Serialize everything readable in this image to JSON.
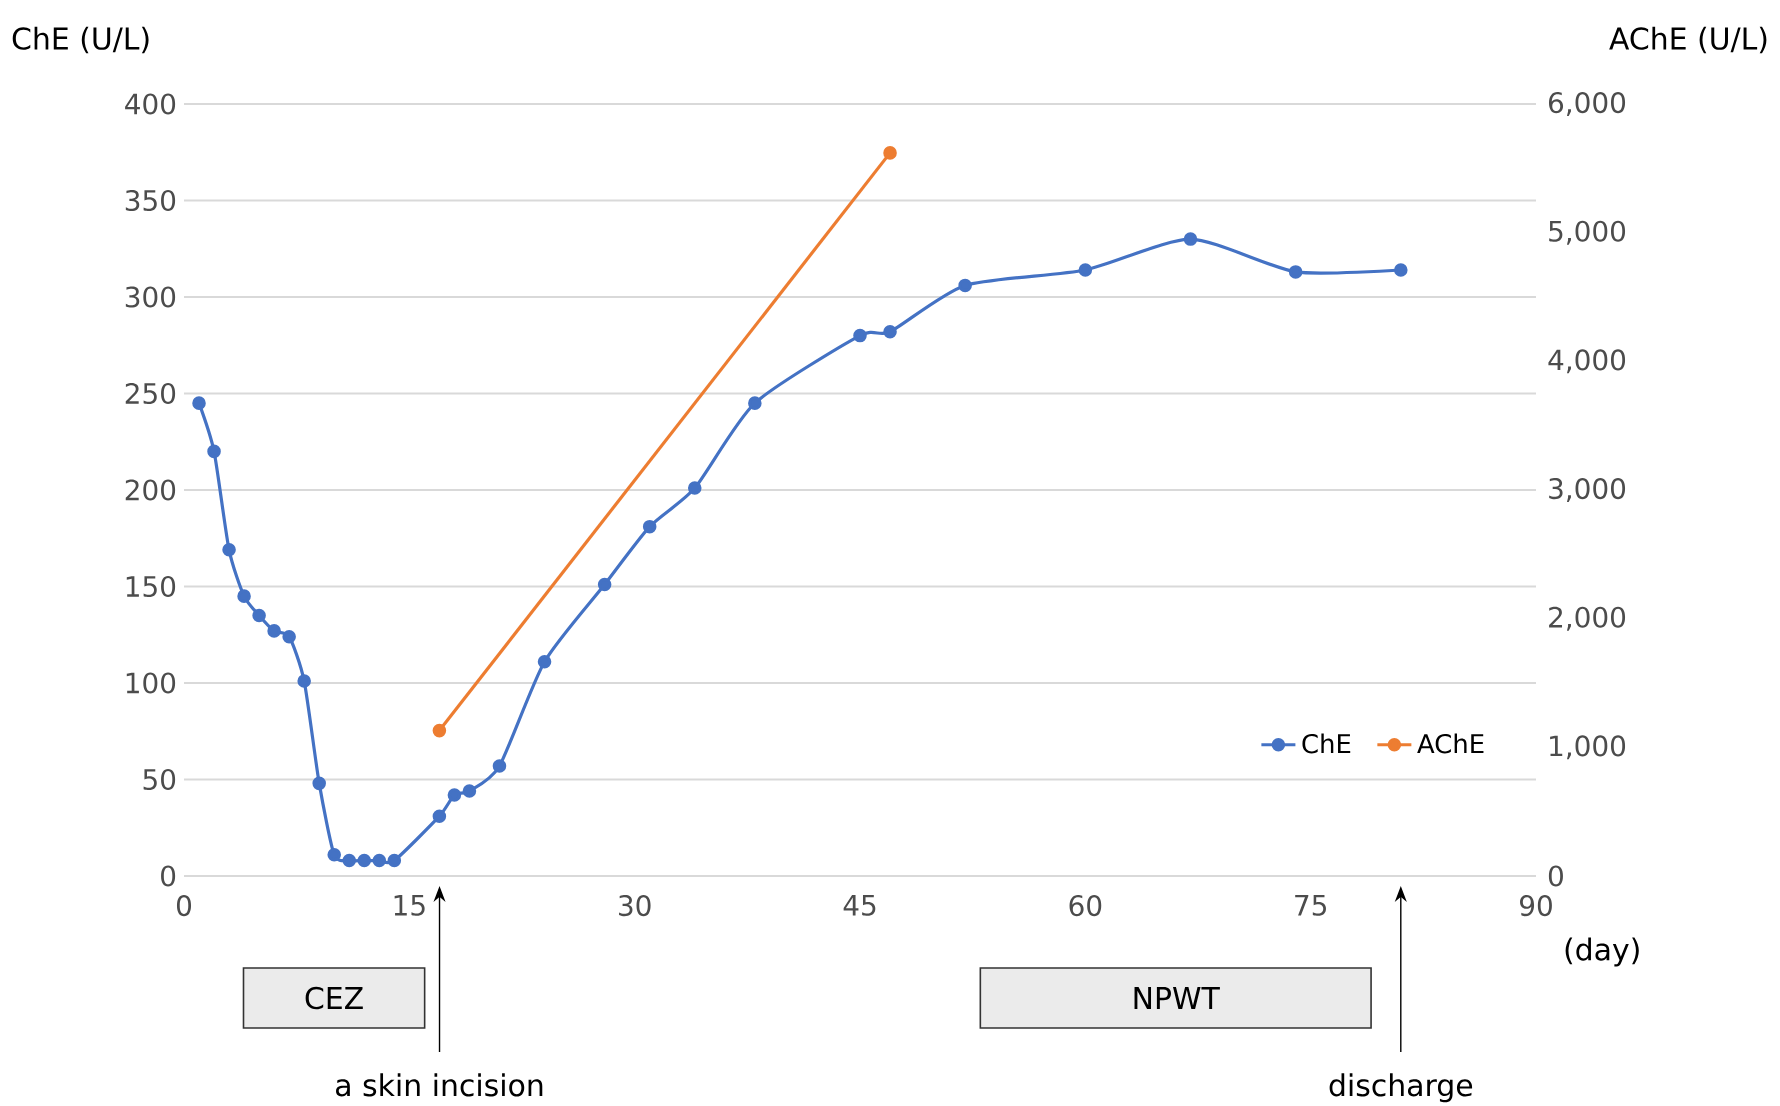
{
  "chart_data": {
    "type": "line",
    "xlabel": "(day)",
    "ylabel": "ChE (U/L)",
    "y2label": "AChE (U/L)",
    "xlim": [
      0,
      90
    ],
    "xticks": [
      0,
      15,
      30,
      45,
      60,
      75,
      90
    ],
    "ylim": [
      0,
      400
    ],
    "yticks": [
      0,
      50,
      100,
      150,
      200,
      250,
      300,
      350,
      400
    ],
    "y2lim": [
      0,
      6000
    ],
    "y2ticks": [
      0,
      {
        "value": 1000,
        "label": "1,000"
      },
      {
        "value": 2000,
        "label": "2,000"
      },
      {
        "value": 3000,
        "label": "3,000"
      },
      {
        "value": 4000,
        "label": "4,000"
      },
      {
        "value": 5000,
        "label": "5,000"
      },
      {
        "value": 6000,
        "label": "6,000"
      }
    ],
    "series": [
      {
        "name": "ChE",
        "color": "#4472c4",
        "x": [
          1,
          2,
          3,
          4,
          5,
          6,
          7,
          8,
          9,
          10,
          11,
          12,
          13,
          14,
          17,
          18,
          19,
          21,
          24,
          28,
          31,
          34,
          38,
          45,
          47,
          52,
          60,
          67,
          74,
          81
        ],
        "values": [
          245,
          220,
          169,
          145,
          135,
          127,
          124,
          101,
          48,
          11,
          8,
          8,
          8,
          8,
          31,
          42,
          44,
          57,
          111,
          151,
          181,
          201,
          245,
          280,
          282,
          306,
          314,
          330,
          313,
          314
        ]
      },
      {
        "name": "AChE",
        "color": "#ed7d31",
        "axis": "y2",
        "x": [
          17,
          47
        ],
        "values": [
          1130,
          5620
        ]
      }
    ],
    "annotations": [
      "CEZ",
      "NPWT",
      "a skin incision",
      "discharge"
    ],
    "grid": "y",
    "legend": "right",
    "marker": "circle",
    "line_style": "solid"
  }
}
